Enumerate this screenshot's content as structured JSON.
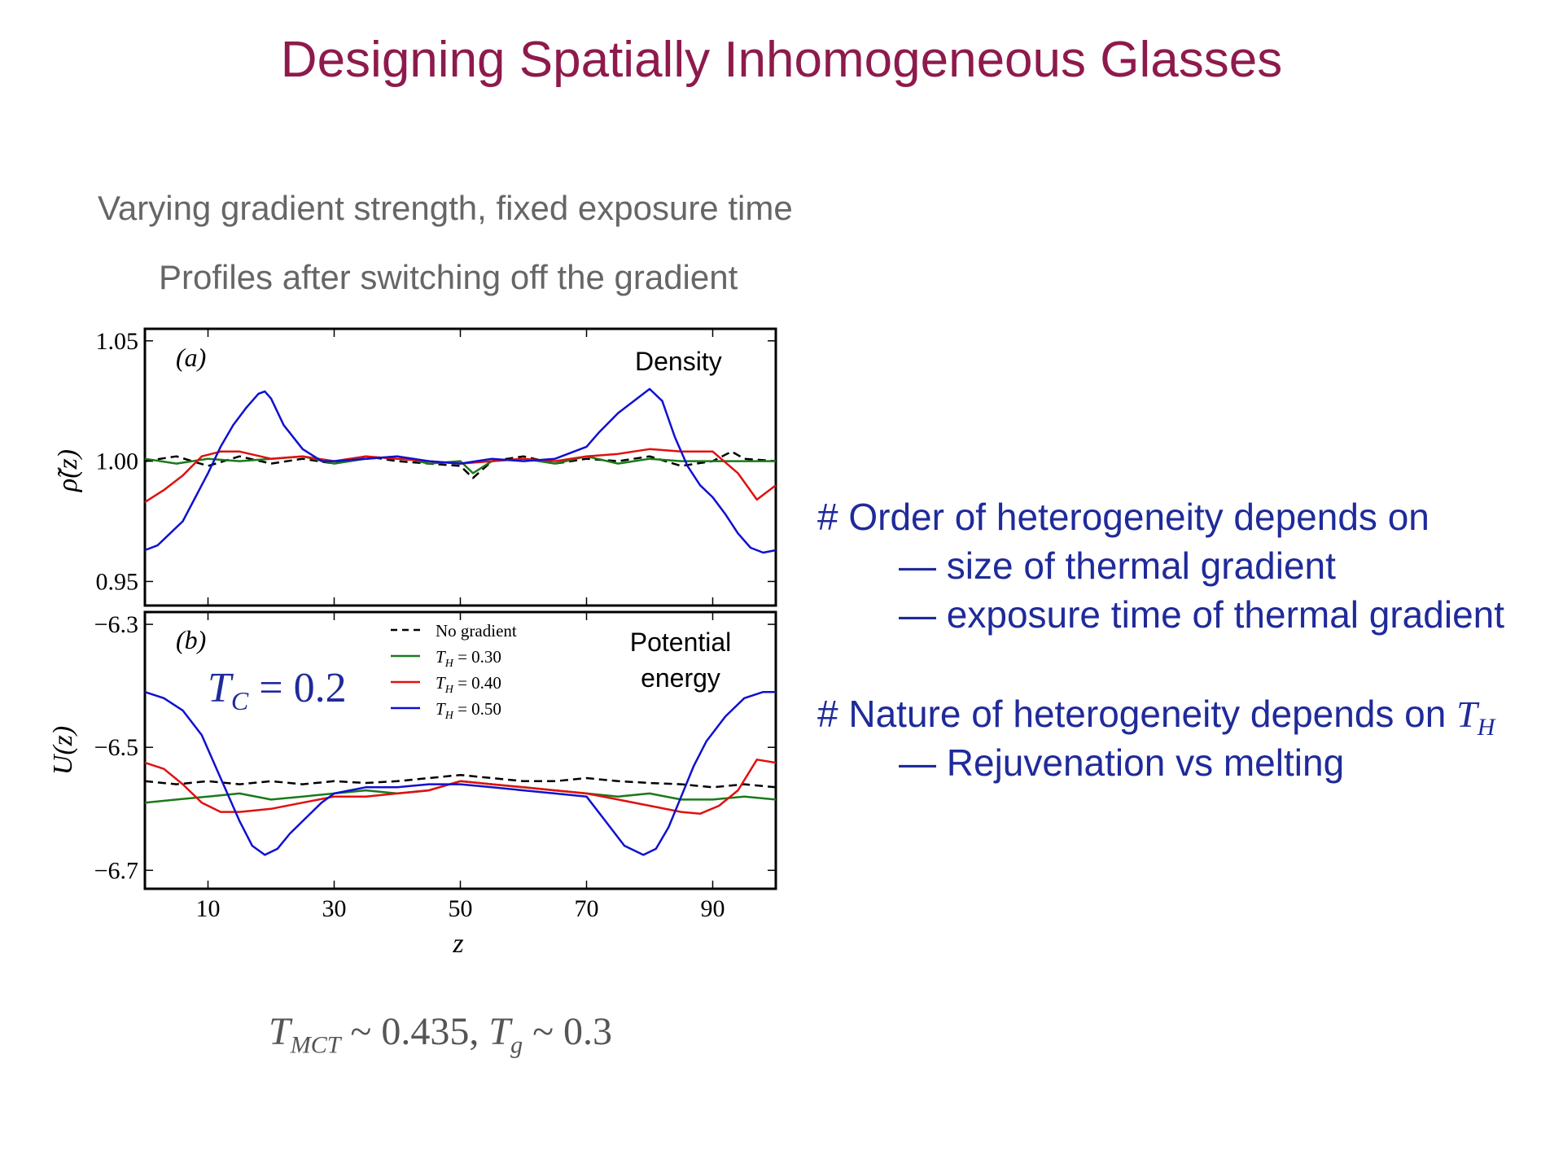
{
  "slide": {
    "title": "Designing Spatially Inhomogeneous Glasses",
    "subtitle_1": "Varying gradient strength, fixed exposure time",
    "subtitle_2": "Profiles after switching off the gradient",
    "footer": {
      "tmct": "T",
      "tmct_sub": "MCT",
      "tmct_val": " ~ 0.435, ",
      "tg": "T",
      "tg_sub": "g",
      "tg_val": " ~ 0.3"
    }
  },
  "bullets": {
    "b1": "# Order of heterogeneity depends on",
    "b1a": "— size of thermal gradient",
    "b1b": "— exposure time of thermal gradient",
    "b2": "# Nature of heterogeneity depends on ",
    "b2_math": "T",
    "b2_sub": "H",
    "b2a": "— Rejuvenation vs melting"
  },
  "colors": {
    "title": "#8e1a4c",
    "bullets": "#1f2a9a",
    "no_gradient": "#000000",
    "th030": "#1a7a1a",
    "th040": "#e01010",
    "th050": "#1010d0"
  },
  "chart_data": [
    {
      "type": "line",
      "panel": "(a)",
      "annotation": "Density",
      "ylabel": "ρ̃(z)",
      "xlabel": "",
      "xlim": [
        0,
        100
      ],
      "ylim": [
        0.94,
        1.055
      ],
      "yticks": [
        "1.05",
        "1.00",
        "0.95"
      ],
      "ytick_values": [
        1.05,
        1.0,
        0.95
      ],
      "series": [
        {
          "name": "No gradient",
          "style": "dashed",
          "x": [
            0,
            5,
            10,
            15,
            20,
            25,
            30,
            35,
            40,
            45,
            50,
            52,
            55,
            60,
            65,
            70,
            75,
            80,
            85,
            90,
            93,
            95,
            100
          ],
          "y": [
            1.0,
            1.002,
            0.998,
            1.002,
            0.999,
            1.001,
            0.999,
            1.002,
            1.0,
            0.999,
            0.998,
            0.993,
            1.0,
            1.002,
            0.999,
            1.001,
            1.0,
            1.002,
            0.998,
            1.0,
            1.004,
            1.001,
            1.0
          ]
        },
        {
          "name": "T_H = 0.30",
          "style": "solid",
          "x": [
            0,
            5,
            10,
            15,
            20,
            25,
            30,
            35,
            40,
            45,
            50,
            52,
            55,
            60,
            65,
            70,
            75,
            80,
            85,
            90,
            95,
            100
          ],
          "y": [
            1.001,
            0.999,
            1.001,
            1.0,
            1.001,
            1.002,
            0.999,
            1.001,
            1.002,
            0.999,
            1.0,
            0.995,
            1.0,
            1.001,
            0.999,
            1.002,
            0.999,
            1.001,
            1.0,
            1.0,
            1.0,
            1.0
          ]
        },
        {
          "name": "T_H = 0.40",
          "style": "solid",
          "x": [
            0,
            3,
            6,
            9,
            12,
            15,
            20,
            25,
            30,
            35,
            40,
            45,
            50,
            55,
            60,
            65,
            70,
            75,
            80,
            85,
            90,
            94,
            97,
            100
          ],
          "y": [
            0.983,
            0.988,
            0.994,
            1.002,
            1.004,
            1.004,
            1.001,
            1.002,
            1.0,
            1.002,
            1.001,
            1.0,
            0.999,
            1.0,
            1.001,
            1.0,
            1.002,
            1.003,
            1.005,
            1.004,
            1.004,
            0.995,
            0.984,
            0.99
          ]
        },
        {
          "name": "T_H = 0.50",
          "style": "solid",
          "x": [
            0,
            2,
            4,
            6,
            8,
            10,
            12,
            14,
            16,
            18,
            19,
            20,
            22,
            25,
            28,
            30,
            35,
            40,
            45,
            50,
            55,
            60,
            65,
            70,
            72,
            75,
            78,
            80,
            82,
            84,
            86,
            88,
            90,
            92,
            94,
            96,
            98,
            100
          ],
          "y": [
            0.963,
            0.965,
            0.97,
            0.975,
            0.985,
            0.995,
            1.006,
            1.015,
            1.022,
            1.028,
            1.029,
            1.026,
            1.015,
            1.005,
            1.0,
            1.0,
            1.001,
            1.002,
            1.0,
            0.999,
            1.001,
            1.0,
            1.001,
            1.006,
            1.012,
            1.02,
            1.026,
            1.03,
            1.025,
            1.01,
            0.998,
            0.99,
            0.985,
            0.978,
            0.97,
            0.964,
            0.962,
            0.963
          ]
        }
      ]
    },
    {
      "type": "line",
      "panel": "(b)",
      "annotation_1": "Potential",
      "annotation_2": "energy",
      "inset_label": "T",
      "inset_sub": "C",
      "inset_val": " = 0.2",
      "ylabel": "U(z)",
      "xlabel": "z",
      "xlim": [
        0,
        100
      ],
      "ylim": [
        -6.73,
        -6.28
      ],
      "yticks": [
        "−6.3",
        "−6.5",
        "−6.7"
      ],
      "ytick_values": [
        -6.3,
        -6.5,
        -6.7
      ],
      "xticks": [
        "10",
        "30",
        "50",
        "70",
        "90"
      ],
      "xtick_values": [
        10,
        30,
        50,
        70,
        90
      ],
      "legend": [
        "No gradient",
        "T_H = 0.30",
        "T_H = 0.40",
        "T_H = 0.50"
      ],
      "legend_display": [
        {
          "text": "No gradient"
        },
        {
          "math": "T",
          "sub": "H",
          "rest": " = 0.30"
        },
        {
          "math": "T",
          "sub": "H",
          "rest": " = 0.40"
        },
        {
          "math": "T",
          "sub": "H",
          "rest": " = 0.50"
        }
      ],
      "series": [
        {
          "name": "No gradient",
          "style": "dashed",
          "x": [
            0,
            5,
            10,
            15,
            20,
            25,
            30,
            35,
            40,
            45,
            50,
            55,
            60,
            65,
            70,
            75,
            80,
            85,
            90,
            95,
            100
          ],
          "y": [
            -6.555,
            -6.56,
            -6.555,
            -6.56,
            -6.555,
            -6.56,
            -6.555,
            -6.558,
            -6.555,
            -6.55,
            -6.545,
            -6.55,
            -6.555,
            -6.555,
            -6.55,
            -6.555,
            -6.558,
            -6.56,
            -6.565,
            -6.56,
            -6.565
          ]
        },
        {
          "name": "T_H = 0.30",
          "style": "solid",
          "x": [
            0,
            5,
            10,
            15,
            20,
            25,
            30,
            35,
            40,
            45,
            50,
            55,
            60,
            65,
            70,
            75,
            80,
            85,
            90,
            95,
            100
          ],
          "y": [
            -6.59,
            -6.585,
            -6.58,
            -6.575,
            -6.585,
            -6.58,
            -6.575,
            -6.57,
            -6.575,
            -6.57,
            -6.555,
            -6.56,
            -6.565,
            -6.57,
            -6.575,
            -6.58,
            -6.575,
            -6.585,
            -6.585,
            -6.58,
            -6.585
          ]
        },
        {
          "name": "T_H = 0.40",
          "style": "solid",
          "x": [
            0,
            3,
            6,
            9,
            12,
            15,
            20,
            25,
            30,
            35,
            40,
            45,
            50,
            55,
            60,
            65,
            70,
            75,
            80,
            85,
            88,
            91,
            94,
            97,
            100
          ],
          "y": [
            -6.525,
            -6.535,
            -6.56,
            -6.59,
            -6.605,
            -6.605,
            -6.6,
            -6.59,
            -6.58,
            -6.58,
            -6.575,
            -6.57,
            -6.555,
            -6.56,
            -6.565,
            -6.57,
            -6.575,
            -6.585,
            -6.595,
            -6.605,
            -6.608,
            -6.595,
            -6.57,
            -6.52,
            -6.525
          ]
        },
        {
          "name": "T_H = 0.50",
          "style": "solid",
          "x": [
            0,
            3,
            6,
            9,
            12,
            15,
            17,
            19,
            21,
            23,
            25,
            28,
            30,
            35,
            40,
            45,
            50,
            55,
            60,
            65,
            70,
            73,
            76,
            79,
            81,
            83,
            85,
            87,
            89,
            92,
            95,
            98,
            100
          ],
          "y": [
            -6.41,
            -6.42,
            -6.44,
            -6.48,
            -6.55,
            -6.62,
            -6.66,
            -6.675,
            -6.665,
            -6.64,
            -6.62,
            -6.59,
            -6.575,
            -6.565,
            -6.565,
            -6.56,
            -6.56,
            -6.565,
            -6.57,
            -6.575,
            -6.58,
            -6.62,
            -6.66,
            -6.675,
            -6.665,
            -6.63,
            -6.58,
            -6.53,
            -6.49,
            -6.45,
            -6.42,
            -6.41,
            -6.41
          ]
        }
      ]
    }
  ]
}
